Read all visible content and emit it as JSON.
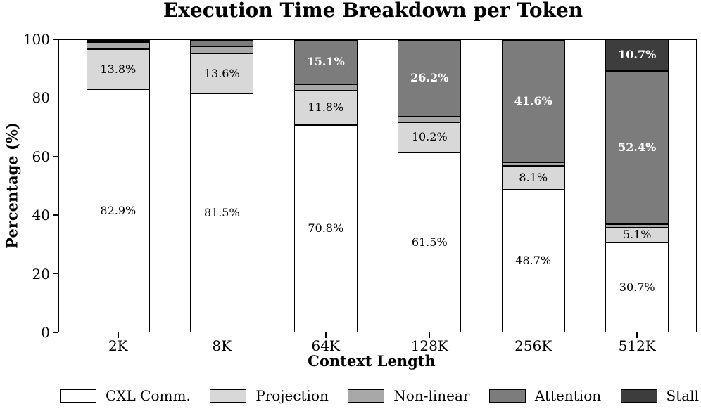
{
  "chart_data": {
    "type": "bar",
    "stacked": true,
    "title": "Execution Time Breakdown per Token",
    "xlabel": "Context Length",
    "ylabel": "Percentage (%)",
    "ylim": [
      0,
      100
    ],
    "yticks": [
      "0",
      "20",
      "40",
      "60",
      "80",
      "100"
    ],
    "categories": [
      "2K",
      "8K",
      "64K",
      "128K",
      "256K",
      "512K"
    ],
    "grid": false,
    "legend_position": "bottom",
    "axis_color": "#000000",
    "background_color": "#ffffff",
    "series": [
      {
        "name": "CXL Comm.",
        "color": "#ffffff",
        "label_style": "dark",
        "values": [
          82.9,
          81.5,
          70.8,
          61.5,
          48.7,
          30.7
        ],
        "labels": [
          "82.9%",
          "81.5%",
          "70.8%",
          "61.5%",
          "48.7%",
          "30.7%"
        ]
      },
      {
        "name": "Projection",
        "color": "#d8d8d8",
        "label_style": "dark",
        "values": [
          13.8,
          13.6,
          11.8,
          10.2,
          8.1,
          5.1
        ],
        "labels": [
          "13.8%",
          "13.6%",
          "11.8%",
          "10.2%",
          "8.1%",
          "5.1%"
        ]
      },
      {
        "name": "Non-linear",
        "color": "#a8a8a8",
        "label_style": "dark",
        "values": [
          2.4,
          2.4,
          2.1,
          2.0,
          1.3,
          1.1
        ],
        "labels": [
          "",
          "",
          "",
          "",
          "",
          ""
        ]
      },
      {
        "name": "Attention",
        "color": "#7c7c7c",
        "label_style": "light",
        "values": [
          0.8,
          2.4,
          15.1,
          26.2,
          41.6,
          52.4
        ],
        "labels": [
          "",
          "",
          "15.1%",
          "26.2%",
          "41.6%",
          "52.4%"
        ]
      },
      {
        "name": "Stall",
        "color": "#3d3d3d",
        "label_style": "light",
        "values": [
          0.1,
          0.1,
          0.2,
          0.1,
          0.3,
          10.7
        ],
        "labels": [
          "",
          "",
          "",
          "",
          "",
          "10.7%"
        ]
      }
    ]
  }
}
